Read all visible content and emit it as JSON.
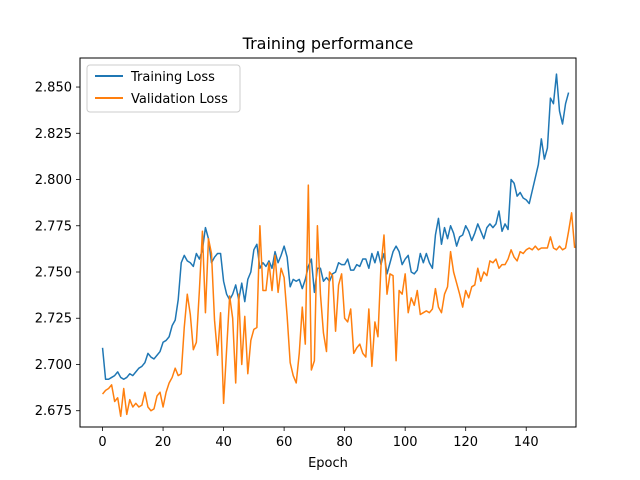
{
  "chart_data": {
    "type": "line",
    "title": "Training performance",
    "xlabel": "Epoch",
    "ylabel": "",
    "xlim": [
      -7.45,
      156.45
    ],
    "ylim": [
      2.6662,
      2.8657
    ],
    "xticks": [
      0,
      20,
      40,
      60,
      80,
      100,
      120,
      140
    ],
    "yticks": [
      2.675,
      2.7,
      2.725,
      2.75,
      2.775,
      2.8,
      2.825,
      2.85
    ],
    "ytick_labels": [
      "2.675",
      "2.700",
      "2.725",
      "2.750",
      "2.775",
      "2.800",
      "2.825",
      "2.850"
    ],
    "grid": false,
    "legend_position": "top-left",
    "series": [
      {
        "name": "Training Loss",
        "color": "#1f77b4",
        "values": [
          2.709,
          2.692,
          2.692,
          2.693,
          2.694,
          2.696,
          2.693,
          2.692,
          2.693,
          2.695,
          2.694,
          2.696,
          2.698,
          2.699,
          2.701,
          2.706,
          2.704,
          2.703,
          2.705,
          2.707,
          2.712,
          2.713,
          2.715,
          2.721,
          2.724,
          2.735,
          2.755,
          2.759,
          2.756,
          2.755,
          2.753,
          2.76,
          2.757,
          2.762,
          2.774,
          2.768,
          2.755,
          2.758,
          2.76,
          2.76,
          2.745,
          2.738,
          2.735,
          2.738,
          2.743,
          2.735,
          2.744,
          2.734,
          2.746,
          2.75,
          2.762,
          2.765,
          2.752,
          2.755,
          2.753,
          2.756,
          2.752,
          2.761,
          2.755,
          2.759,
          2.764,
          2.758,
          2.742,
          2.746,
          2.745,
          2.746,
          2.741,
          2.746,
          2.753,
          2.757,
          2.739,
          2.752,
          2.752,
          2.745,
          2.747,
          2.745,
          2.749,
          2.75,
          2.755,
          2.754,
          2.754,
          2.757,
          2.751,
          2.751,
          2.754,
          2.753,
          2.757,
          2.757,
          2.752,
          2.76,
          2.755,
          2.761,
          2.754,
          2.76,
          2.749,
          2.755,
          2.761,
          2.764,
          2.761,
          2.754,
          2.757,
          2.759,
          2.75,
          2.749,
          2.751,
          2.76,
          2.755,
          2.76,
          2.755,
          2.752,
          2.77,
          2.779,
          2.765,
          2.774,
          2.768,
          2.775,
          2.771,
          2.764,
          2.769,
          2.77,
          2.775,
          2.772,
          2.767,
          2.771,
          2.776,
          2.772,
          2.768,
          2.774,
          2.776,
          2.774,
          2.776,
          2.783,
          2.772,
          2.776,
          2.773,
          2.8,
          2.798,
          2.791,
          2.793,
          2.79,
          2.789,
          2.787,
          2.794,
          2.801,
          2.808,
          2.822,
          2.811,
          2.817,
          2.844,
          2.841,
          2.857,
          2.837,
          2.83,
          2.841,
          2.847
        ]
      },
      {
        "name": "Validation Loss",
        "color": "#ff7f0e",
        "values": [
          2.684,
          2.686,
          2.687,
          2.689,
          2.68,
          2.682,
          2.672,
          2.687,
          2.673,
          2.681,
          2.677,
          2.679,
          2.677,
          2.678,
          2.685,
          2.677,
          2.675,
          2.676,
          2.683,
          2.685,
          2.677,
          2.685,
          2.69,
          2.693,
          2.698,
          2.694,
          2.695,
          2.72,
          2.738,
          2.727,
          2.708,
          2.712,
          2.74,
          2.772,
          2.728,
          2.768,
          2.76,
          2.724,
          2.705,
          2.728,
          2.679,
          2.708,
          2.737,
          2.725,
          2.69,
          2.738,
          2.7,
          2.726,
          2.695,
          2.713,
          2.719,
          2.72,
          2.775,
          2.74,
          2.74,
          2.755,
          2.74,
          2.759,
          2.739,
          2.752,
          2.747,
          2.726,
          2.701,
          2.694,
          2.69,
          2.706,
          2.731,
          2.711,
          2.797,
          2.697,
          2.702,
          2.775,
          2.738,
          2.717,
          2.707,
          2.75,
          2.748,
          2.718,
          2.743,
          2.749,
          2.725,
          2.723,
          2.73,
          2.706,
          2.709,
          2.711,
          2.706,
          2.704,
          2.73,
          2.699,
          2.723,
          2.715,
          2.753,
          2.77,
          2.738,
          2.749,
          2.748,
          2.702,
          2.74,
          2.738,
          2.749,
          2.728,
          2.736,
          2.732,
          2.74,
          2.727,
          2.728,
          2.729,
          2.728,
          2.73,
          2.741,
          2.731,
          2.728,
          2.738,
          2.742,
          2.761,
          2.75,
          2.744,
          2.738,
          2.731,
          2.74,
          2.736,
          2.742,
          2.743,
          2.752,
          2.745,
          2.75,
          2.748,
          2.756,
          2.755,
          2.757,
          2.752,
          2.754,
          2.754,
          2.757,
          2.762,
          2.758,
          2.756,
          2.761,
          2.76,
          2.762,
          2.763,
          2.762,
          2.764,
          2.762,
          2.763,
          2.763,
          2.763,
          2.769,
          2.763,
          2.762,
          2.764,
          2.762,
          2.763,
          2.772,
          2.782,
          2.763
        ]
      }
    ]
  }
}
